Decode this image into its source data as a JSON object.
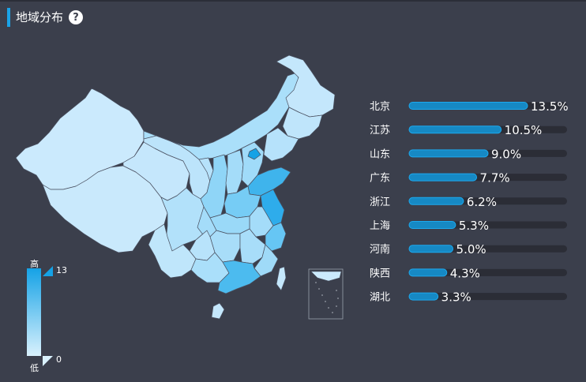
{
  "header": {
    "title": "地域分布",
    "help_icon": "question-circle-icon"
  },
  "legend": {
    "high_label": "高",
    "low_label": "低",
    "max_value": "13",
    "min_value": "0",
    "color_high": "#15a2e6",
    "color_low": "#d9f1fd"
  },
  "chart_data": {
    "type": "bar",
    "orientation": "horizontal",
    "categories": [
      "北京",
      "江苏",
      "山东",
      "广东",
      "浙江",
      "上海",
      "河南",
      "陕西",
      "湖北"
    ],
    "values": [
      13.5,
      10.5,
      9.0,
      7.7,
      6.2,
      5.3,
      5.0,
      4.3,
      3.3
    ],
    "value_labels": [
      "13.5%",
      "10.5%",
      "9.0%",
      "7.7%",
      "6.2%",
      "5.3%",
      "5.0%",
      "4.3%",
      "3.3%"
    ],
    "xlim": [
      0,
      13.5
    ],
    "bar_color": "#1689c4",
    "track_color": "#2b2d36"
  }
}
